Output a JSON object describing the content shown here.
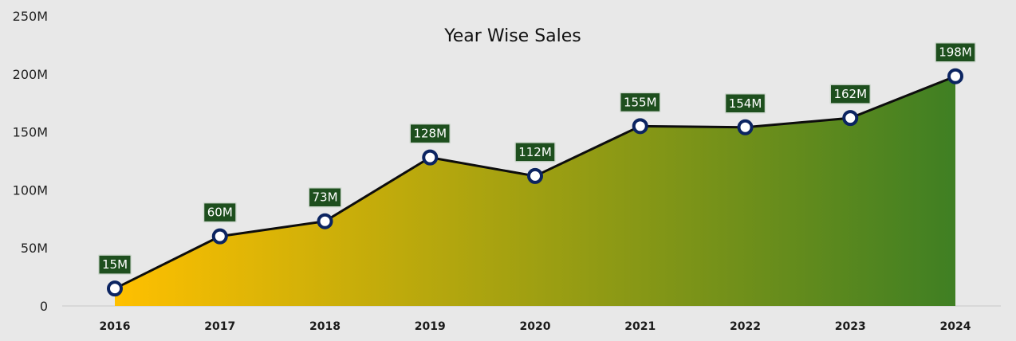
{
  "chart_data": {
    "type": "area",
    "title": "Year Wise Sales",
    "xlabel": "",
    "ylabel": "",
    "categories": [
      "2016",
      "2017",
      "2018",
      "2019",
      "2020",
      "2021",
      "2022",
      "2023",
      "2024"
    ],
    "series": [
      {
        "values": [
          15,
          60,
          73,
          128,
          112,
          155,
          154,
          162,
          198
        ],
        "data_labels": [
          "15M",
          "60M",
          "73M",
          "128M",
          "112M",
          "155M",
          "154M",
          "162M",
          "198M"
        ]
      }
    ],
    "y_ticks": [
      "0",
      "50M",
      "100M",
      "150M",
      "200M",
      "250M"
    ],
    "y_tick_values": [
      0,
      50,
      100,
      150,
      200,
      250
    ],
    "ylim": [
      0,
      250
    ],
    "y_unit": "M",
    "grid": false,
    "legend": "none",
    "colors": {
      "background": "#e8e8e8",
      "area_gradient_start": "#ffc000",
      "area_gradient_end": "#3f7f23",
      "line": "#0d0d0d",
      "marker_stroke": "#0b2461",
      "marker_fill": "#ffffff",
      "label_fill": "#1e4f1e",
      "label_border": "#cfd8cf",
      "label_text": "#ffffff",
      "baseline": "#d3d3d3"
    }
  }
}
